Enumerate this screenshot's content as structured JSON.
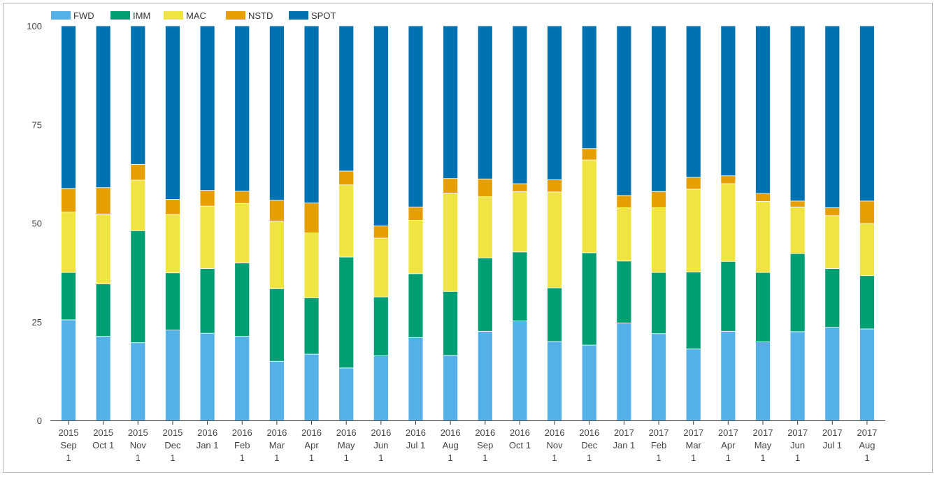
{
  "chart_data": {
    "type": "bar",
    "stacked": true,
    "ylim": [
      0,
      100
    ],
    "yticks": [
      0,
      25,
      50,
      75,
      100
    ],
    "legend_position": "top-left",
    "grid": false,
    "categories": [
      [
        "2015",
        "Sep",
        "1"
      ],
      [
        "2015",
        "Oct 1"
      ],
      [
        "2015",
        "Nov",
        "1"
      ],
      [
        "2015",
        "Dec",
        "1"
      ],
      [
        "2016",
        "Jan 1"
      ],
      [
        "2016",
        "Feb",
        "1"
      ],
      [
        "2016",
        "Mar",
        "1"
      ],
      [
        "2016",
        "Apr",
        "1"
      ],
      [
        "2016",
        "May",
        "1"
      ],
      [
        "2016",
        "Jun",
        "1"
      ],
      [
        "2016",
        "Jul 1"
      ],
      [
        "2016",
        "Aug",
        "1"
      ],
      [
        "2016",
        "Sep",
        "1"
      ],
      [
        "2016",
        "Oct 1"
      ],
      [
        "2016",
        "Nov",
        "1"
      ],
      [
        "2016",
        "Dec",
        "1"
      ],
      [
        "2017",
        "Jan 1"
      ],
      [
        "2017",
        "Feb",
        "1"
      ],
      [
        "2017",
        "Mar",
        "1"
      ],
      [
        "2017",
        "Apr",
        "1"
      ],
      [
        "2017",
        "May",
        "1"
      ],
      [
        "2017",
        "Jun",
        "1"
      ],
      [
        "2017",
        "Jul 1"
      ],
      [
        "2017",
        "Aug",
        "1"
      ]
    ],
    "series": [
      {
        "name": "FWD",
        "color": "#56b0e8",
        "values": [
          25.5,
          21.3,
          19.7,
          22.9,
          22.1,
          21.3,
          15.0,
          16.8,
          13.3,
          16.4,
          21.0,
          16.5,
          22.6,
          25.2,
          20.0,
          19.1,
          24.7,
          22.0,
          18.1,
          22.6,
          19.9,
          22.5,
          23.6,
          23.2
        ]
      },
      {
        "name": "IMM",
        "color": "#009e73",
        "values": [
          12.0,
          13.3,
          28.4,
          14.5,
          16.4,
          18.6,
          18.4,
          14.3,
          28.1,
          14.9,
          16.2,
          16.2,
          18.6,
          17.5,
          13.6,
          23.4,
          15.7,
          15.5,
          19.5,
          17.7,
          17.6,
          19.8,
          14.9,
          13.5
        ]
      },
      {
        "name": "MAC",
        "color": "#f0e442",
        "values": [
          15.3,
          17.7,
          12.8,
          14.8,
          15.8,
          15.1,
          17.1,
          16.4,
          18.3,
          14.9,
          13.5,
          24.9,
          15.5,
          15.3,
          24.3,
          23.5,
          13.5,
          16.4,
          21.0,
          19.7,
          18.0,
          11.8,
          13.4,
          13.2
        ]
      },
      {
        "name": "NSTD",
        "color": "#e69f00",
        "values": [
          6.0,
          6.7,
          4.0,
          3.8,
          4.0,
          3.1,
          5.3,
          7.6,
          3.5,
          3.1,
          3.4,
          3.7,
          4.5,
          2.0,
          3.1,
          2.9,
          3.1,
          4.1,
          3.0,
          2.0,
          2.0,
          1.5,
          2.0,
          5.7
        ]
      },
      {
        "name": "SPOT",
        "color": "#0072b2",
        "values": [
          41.2,
          41.0,
          35.1,
          44.0,
          41.7,
          41.9,
          44.2,
          44.9,
          36.8,
          50.7,
          45.9,
          38.7,
          38.8,
          40.0,
          39.0,
          31.1,
          43.0,
          42.0,
          38.4,
          38.0,
          42.5,
          44.4,
          46.1,
          44.4
        ]
      }
    ]
  }
}
